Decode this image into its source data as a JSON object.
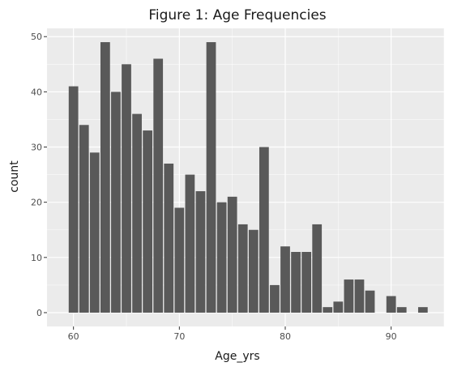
{
  "chart_data": {
    "type": "bar",
    "title": "Figure 1: Age Frequencies",
    "xlabel": "Age_yrs",
    "ylabel": "count",
    "x": [
      60,
      61,
      62,
      63,
      64,
      65,
      66,
      67,
      68,
      69,
      70,
      71,
      72,
      73,
      74,
      75,
      76,
      77,
      78,
      79,
      80,
      81,
      82,
      83,
      84,
      85,
      86,
      87,
      88,
      90,
      91,
      93
    ],
    "values": [
      41,
      34,
      29,
      49,
      40,
      45,
      36,
      33,
      46,
      27,
      19,
      25,
      22,
      49,
      20,
      21,
      16,
      15,
      30,
      5,
      12,
      11,
      11,
      16,
      1,
      2,
      6,
      6,
      4,
      3,
      1,
      1
    ],
    "xlim": [
      57.5,
      95.0
    ],
    "ylim": [
      -2.5,
      51.5
    ],
    "xticks": [
      60,
      70,
      80,
      90
    ],
    "yticks": [
      0,
      10,
      20,
      30,
      40,
      50
    ],
    "grid": true,
    "colors": {
      "panel": "#ebebeb",
      "grid_major": "#ffffff",
      "bar": "#595959",
      "text": "#1a1a1a",
      "tick_text": "#4d4d4d",
      "tick": "#333333"
    }
  }
}
